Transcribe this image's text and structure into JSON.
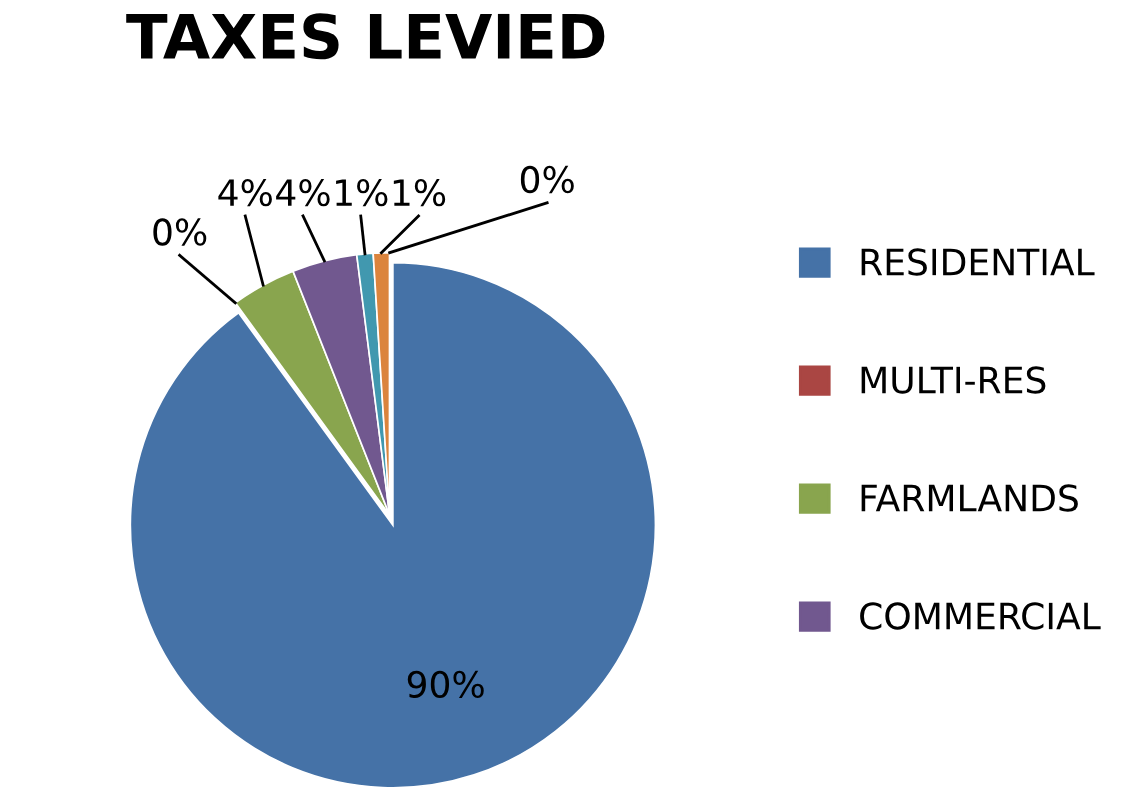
{
  "chart_data": {
    "type": "pie",
    "title": "TAXES LEVIED",
    "categories": [
      "RESIDENTIAL",
      "MULTI-RES",
      "FARMLANDS",
      "COMMERCIAL",
      null,
      null,
      null
    ],
    "values": [
      90,
      0,
      4,
      4,
      1,
      1,
      0
    ],
    "value_labels": [
      "90%",
      "0%",
      "4%",
      "4%",
      "1%",
      "1%",
      "0%"
    ],
    "colors": [
      "#4572a7",
      "#aa4643",
      "#89a54e",
      "#71588f",
      "#4198af",
      "#db843d",
      "#93a9cf"
    ],
    "legend": "right"
  }
}
